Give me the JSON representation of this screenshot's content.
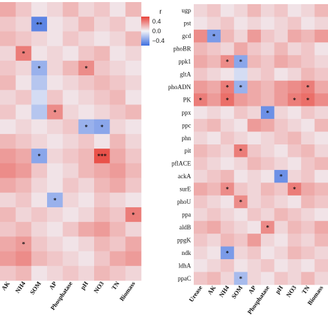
{
  "chart_data": [
    {
      "type": "heatmap",
      "panel": "left",
      "x": [
        "AK",
        "NH4",
        "SOM",
        "AP",
        "Phosphatase",
        "pH",
        "NO3",
        "TN",
        "Biomass"
      ],
      "y": [
        "",
        "",
        "",
        "",
        "",
        "",
        "",
        "",
        "",
        "",
        "",
        "",
        "",
        "",
        "",
        "",
        "",
        "",
        ""
      ],
      "values": [
        [
          0.25,
          0.15,
          0.05,
          0.1,
          0.2,
          0.1,
          0.15,
          0.05,
          0.2
        ],
        [
          0.15,
          0.1,
          -0.5,
          0.05,
          0.1,
          0.2,
          0.1,
          0.15,
          0.05
        ],
        [
          0.2,
          0.15,
          0.1,
          0.05,
          0.15,
          0.1,
          0.05,
          0.1,
          0.2
        ],
        [
          0.1,
          0.4,
          0.05,
          0.1,
          0.05,
          0.15,
          0.2,
          0.05,
          0.1
        ],
        [
          0.15,
          0.1,
          -0.3,
          0.1,
          0.2,
          0.35,
          0.15,
          0.1,
          0.05
        ],
        [
          0.2,
          0.05,
          -0.2,
          0.05,
          0.1,
          0.15,
          0.2,
          0.15,
          0.1
        ],
        [
          0.1,
          0.15,
          -0.1,
          0.15,
          0.05,
          0.1,
          0.15,
          0.2,
          0.05
        ],
        [
          0.15,
          0.05,
          -0.2,
          0.35,
          0.1,
          0.05,
          0.1,
          0.15,
          0.2
        ],
        [
          0.05,
          0.1,
          0.05,
          0.1,
          0.15,
          -0.3,
          -0.35,
          0.1,
          0.05
        ],
        [
          0.2,
          0.15,
          0.1,
          0.05,
          0.1,
          0.15,
          0.05,
          0.2,
          0.1
        ],
        [
          0.3,
          0.25,
          -0.35,
          0.1,
          0.15,
          0.2,
          0.55,
          0.25,
          0.15
        ],
        [
          0.35,
          0.3,
          0.15,
          0.05,
          0.1,
          0.2,
          0.25,
          0.3,
          0.2
        ],
        [
          0.25,
          0.2,
          0.1,
          0.05,
          0.15,
          0.1,
          0.2,
          0.25,
          0.15
        ],
        [
          0.1,
          0.15,
          0.05,
          -0.3,
          0.1,
          0.05,
          0.15,
          0.1,
          0.05
        ],
        [
          0.2,
          0.1,
          0.15,
          0.1,
          0.05,
          0.1,
          0.2,
          0.15,
          0.4
        ],
        [
          0.15,
          0.2,
          0.1,
          0.05,
          0.15,
          0.25,
          0.3,
          0.2,
          0.1
        ],
        [
          0.25,
          0.3,
          0.15,
          0.1,
          0.05,
          0.1,
          0.2,
          0.15,
          0.25
        ],
        [
          0.3,
          0.35,
          0.2,
          0.15,
          0.1,
          0.05,
          0.15,
          0.25,
          0.3
        ],
        [
          0.15,
          0.2,
          0.05,
          0.1,
          0.15,
          0.1,
          0.2,
          0.15,
          0.1
        ]
      ],
      "stars": [
        [
          "",
          "",
          "",
          "",
          "",
          "",
          "",
          "",
          ""
        ],
        [
          "",
          "",
          "**",
          "",
          "",
          "",
          "",
          "",
          ""
        ],
        [
          "",
          "",
          "",
          "",
          "",
          "",
          "",
          "",
          ""
        ],
        [
          "",
          "*",
          "",
          "",
          "",
          "",
          "",
          "",
          ""
        ],
        [
          "",
          "",
          "*",
          "",
          "",
          "*",
          "",
          "",
          ""
        ],
        [
          "",
          "",
          "",
          "",
          "",
          "",
          "",
          "",
          ""
        ],
        [
          "",
          "",
          "",
          "",
          "",
          "",
          "",
          "",
          ""
        ],
        [
          "",
          "",
          "",
          "*",
          "",
          "",
          "",
          "",
          ""
        ],
        [
          "",
          "",
          "",
          "",
          "",
          "*",
          "*",
          "",
          ""
        ],
        [
          "",
          "",
          "",
          "",
          "",
          "",
          "",
          "",
          ""
        ],
        [
          "",
          "",
          "*",
          "",
          "",
          "",
          "***",
          "",
          ""
        ],
        [
          "",
          "",
          "",
          "",
          "",
          "",
          "",
          "",
          ""
        ],
        [
          "",
          "",
          "",
          "",
          "",
          "",
          "",
          "",
          ""
        ],
        [
          "",
          "",
          "",
          "*",
          "",
          "",
          "",
          "",
          ""
        ],
        [
          "",
          "",
          "",
          "",
          "",
          "",
          "",
          "",
          "*"
        ],
        [
          "",
          "",
          "",
          "",
          "",
          "",
          "",
          "",
          ""
        ],
        [
          "",
          "*",
          "",
          "",
          "",
          "",
          "",
          "",
          ""
        ],
        [
          "",
          "",
          "",
          "",
          "",
          "",
          "",
          "",
          ""
        ],
        [
          "",
          "",
          "",
          "",
          "",
          "",
          "",
          "",
          ""
        ]
      ]
    },
    {
      "type": "heatmap",
      "panel": "right",
      "x": [
        "Urease",
        "AK",
        "NH4",
        "SOM",
        "AP",
        "Phosphatase",
        "pH",
        "NO3",
        "TN",
        "Biomass"
      ],
      "y": [
        "ugp",
        "pst",
        "gcd",
        "phoBR",
        "ppk1",
        "gltA",
        "phoADN",
        "PK",
        "ppx",
        "ppc",
        "phn",
        "pit",
        "pflACE",
        "ackA",
        "surE",
        "phoU",
        "ppa",
        "aldB",
        "ppgK",
        "ndk",
        "ldhA",
        "ppaC"
      ],
      "values": [
        [
          0.1,
          0.15,
          0.05,
          0.1,
          0.2,
          0.1,
          0.15,
          0.05,
          0.1,
          0.2
        ],
        [
          0.05,
          0.1,
          0.15,
          0.05,
          0.1,
          0.05,
          0.1,
          0.15,
          0.05,
          0.1
        ],
        [
          0.35,
          -0.4,
          0.2,
          0.1,
          0.3,
          0.15,
          0.1,
          0.25,
          0.2,
          0.3
        ],
        [
          0.2,
          0.15,
          0.1,
          0.25,
          0.15,
          0.1,
          0.2,
          0.1,
          0.15,
          0.05
        ],
        [
          0.25,
          0.2,
          0.35,
          -0.35,
          0.2,
          0.15,
          0.25,
          0.2,
          0.15,
          0.1
        ],
        [
          0.15,
          0.1,
          0.05,
          -0.1,
          0.1,
          0.15,
          0.05,
          0.1,
          0.2,
          0.15
        ],
        [
          0.3,
          0.25,
          0.4,
          -0.3,
          0.25,
          0.2,
          0.3,
          0.35,
          0.4,
          0.25
        ],
        [
          0.4,
          0.3,
          0.45,
          0.3,
          0.25,
          0.2,
          0.3,
          0.4,
          0.45,
          0.35
        ],
        [
          0.05,
          0.1,
          0.05,
          0.15,
          0.1,
          -0.45,
          0.1,
          0.05,
          0.15,
          0.1
        ],
        [
          0.15,
          0.2,
          0.1,
          0.05,
          0.3,
          0.25,
          0.15,
          0.1,
          0.05,
          0.2
        ],
        [
          0.1,
          0.05,
          0.15,
          0.1,
          0.05,
          0.1,
          0.15,
          0.2,
          0.1,
          0.05
        ],
        [
          0.2,
          0.15,
          0.1,
          0.4,
          0.15,
          0.1,
          0.05,
          0.15,
          0.2,
          0.1
        ],
        [
          0.15,
          0.1,
          0.05,
          0.1,
          0.2,
          0.15,
          0.1,
          0.05,
          0.15,
          0.2
        ],
        [
          0.1,
          0.15,
          0.2,
          0.05,
          0.1,
          0.05,
          -0.45,
          0.1,
          0.15,
          0.05
        ],
        [
          0.25,
          0.2,
          0.35,
          0.15,
          0.1,
          0.2,
          0.15,
          0.4,
          0.25,
          0.2
        ],
        [
          0.15,
          0.1,
          0.05,
          0.35,
          0.1,
          0.15,
          0.1,
          0.05,
          0.2,
          0.15
        ],
        [
          0.1,
          0.15,
          0.1,
          0.05,
          0.15,
          0.1,
          0.2,
          0.15,
          0.1,
          0.05
        ],
        [
          0.2,
          0.25,
          0.15,
          0.1,
          0.05,
          0.35,
          0.1,
          0.2,
          0.15,
          0.25
        ],
        [
          0.15,
          0.1,
          0.2,
          0.15,
          0.3,
          0.1,
          0.05,
          0.15,
          0.1,
          0.2
        ],
        [
          0.1,
          0.05,
          -0.4,
          0.1,
          0.15,
          0.05,
          0.1,
          0.2,
          0.15,
          0.1
        ],
        [
          0.05,
          0.1,
          0.15,
          0.05,
          0.1,
          0.15,
          0.05,
          0.1,
          0.05,
          0.15
        ],
        [
          0.15,
          0.2,
          0.1,
          -0.25,
          0.1,
          0.05,
          0.15,
          0.1,
          0.2,
          0.1
        ]
      ],
      "stars": [
        [
          "",
          "",
          "",
          "",
          "",
          "",
          "",
          "",
          "",
          ""
        ],
        [
          "",
          "",
          "",
          "",
          "",
          "",
          "",
          "",
          "",
          ""
        ],
        [
          "",
          "*",
          "",
          "",
          "",
          "",
          "",
          "",
          "",
          ""
        ],
        [
          "",
          "",
          "",
          "",
          "",
          "",
          "",
          "",
          "",
          ""
        ],
        [
          "",
          "",
          "*",
          "*",
          "",
          "",
          "",
          "",
          "",
          ""
        ],
        [
          "",
          "",
          "",
          "",
          "",
          "",
          "",
          "",
          "",
          ""
        ],
        [
          "",
          "",
          "*",
          "*",
          "",
          "",
          "",
          "",
          "*",
          ""
        ],
        [
          "*",
          "",
          "*",
          "",
          "",
          "",
          "",
          "*",
          "*",
          ""
        ],
        [
          "",
          "",
          "",
          "",
          "",
          "*",
          "",
          "",
          "",
          ""
        ],
        [
          "",
          "",
          "",
          "",
          "",
          "",
          "",
          "",
          "",
          ""
        ],
        [
          "",
          "",
          "",
          "",
          "",
          "",
          "",
          "",
          "",
          ""
        ],
        [
          "",
          "",
          "",
          "*",
          "",
          "",
          "",
          "",
          "",
          ""
        ],
        [
          "",
          "",
          "",
          "",
          "",
          "",
          "",
          "",
          "",
          ""
        ],
        [
          "",
          "",
          "",
          "",
          "",
          "",
          "*",
          "",
          "",
          ""
        ],
        [
          "",
          "",
          "*",
          "",
          "",
          "",
          "",
          "*",
          "",
          ""
        ],
        [
          "",
          "",
          "",
          "*",
          "",
          "",
          "",
          "",
          "",
          ""
        ],
        [
          "",
          "",
          "",
          "",
          "",
          "",
          "",
          "",
          "",
          ""
        ],
        [
          "",
          "",
          "",
          "",
          "",
          "*",
          "",
          "",
          "",
          ""
        ],
        [
          "",
          "",
          "",
          "",
          "",
          "",
          "",
          "",
          "",
          ""
        ],
        [
          "",
          "",
          "*",
          "",
          "",
          "",
          "",
          "",
          "",
          ""
        ],
        [
          "",
          "",
          "",
          "",
          "",
          "",
          "",
          "",
          "",
          ""
        ],
        [
          "",
          "",
          "",
          "*",
          "",
          "",
          "",
          "",
          "",
          ""
        ]
      ]
    }
  ],
  "legend": {
    "title": "r",
    "ticks": [
      "0.4",
      "0.0",
      "−0.4"
    ],
    "tick_values": [
      0.4,
      0.0,
      -0.4
    ],
    "range": [
      -0.6,
      0.6
    ],
    "colors": {
      "negative": "#3f6fe0",
      "neutral": "#f2f2f7",
      "positive": "#e8433a"
    }
  }
}
